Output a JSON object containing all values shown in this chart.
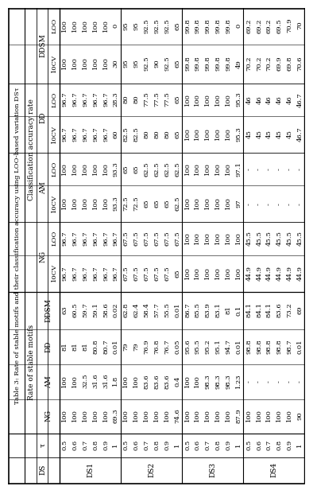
{
  "title": "Table 3: Rate of stable motifs and their classification accuracy using LOO-based variation DSτ",
  "ds_groups": [
    "DS1",
    "DS2",
    "DS3",
    "DS4"
  ],
  "tau_values": [
    "0.5",
    "0.6",
    "0.7",
    "0.8",
    "0.9",
    "1"
  ],
  "data": {
    "DS1": {
      "NG": [
        100,
        100,
        100,
        100,
        100,
        69.3
      ],
      "AM": [
        100,
        100,
        32.5,
        31.6,
        31.6,
        1.8
      ],
      "DD": [
        81,
        81,
        81,
        80.8,
        80.7,
        0.01
      ],
      "DDSM": [
        63,
        60.5,
        59.7,
        59.1,
        58.6,
        0.02
      ],
      "NG_10CV": [
        96.7,
        96.7,
        96.7,
        96.7,
        96.7,
        96.7
      ],
      "NG_LOO": [
        96.7,
        96.7,
        96.7,
        96.7,
        96.7,
        96.7
      ],
      "AM_10CV": [
        100,
        100,
        100,
        100,
        100,
        93.3
      ],
      "AM_LOO": [
        100,
        100,
        100,
        100,
        100,
        93.3
      ],
      "DD_10CV": [
        96.7,
        96.7,
        96.7,
        96.7,
        96.7,
        60
      ],
      "DD_LOO": [
        96.7,
        96.7,
        96.7,
        96.7,
        96.7,
        28.3
      ],
      "DDSM_10CV": [
        100,
        100,
        100,
        100,
        100,
        30
      ],
      "DDSM_LOO": [
        100,
        100,
        100,
        100,
        100,
        0
      ]
    },
    "DS2": {
      "NG": [
        100,
        100,
        100,
        100,
        100,
        74.6
      ],
      "AM": [
        100,
        100,
        83.6,
        83.6,
        83.6,
        0.4
      ],
      "DD": [
        79,
        79,
        76.9,
        76.8,
        76.7,
        0.05
      ],
      "DDSM": [
        62.8,
        62.4,
        58.4,
        57.7,
        55.5,
        0.01
      ],
      "NG_10CV": [
        67.5,
        67.5,
        67.5,
        67.5,
        67.5,
        65
      ],
      "NG_LOO": [
        67.5,
        67.5,
        67.5,
        67.5,
        67.5,
        67.5
      ],
      "AM_10CV": [
        72.5,
        72.5,
        65,
        65,
        65,
        62.5
      ],
      "AM_LOO": [
        65,
        65,
        62.5,
        62.5,
        62.5,
        62.5
      ],
      "DD_10CV": [
        82.5,
        82.5,
        80,
        80,
        80,
        65
      ],
      "DD_LOO": [
        80,
        80,
        77.5,
        77.5,
        77.5,
        65
      ],
      "DDSM_10CV": [
        95,
        95,
        92.5,
        90,
        92.5,
        65
      ],
      "DDSM_LOO": [
        95,
        95,
        92.5,
        92.5,
        92.5,
        65
      ]
    },
    "DS3": {
      "NG": [
        100,
        100,
        100,
        100,
        100,
        87.9
      ],
      "AM": [
        100,
        100,
        98.3,
        98.3,
        98.3,
        1.23
      ],
      "DD": [
        95.6,
        95.5,
        95.2,
        95.1,
        94.7,
        0.01
      ],
      "DDSM": [
        86.7,
        85.5,
        83.9,
        83.1,
        81,
        0.1
      ],
      "NG_10CV": [
        100,
        100,
        100,
        100,
        100,
        100
      ],
      "NG_LOO": [
        100,
        100,
        100,
        100,
        100,
        100
      ],
      "AM_10CV": [
        100,
        100,
        100,
        100,
        100,
        97
      ],
      "AM_LOO": [
        100,
        100,
        100,
        100,
        100,
        97.1
      ],
      "DD_10CV": [
        100,
        100,
        100,
        100,
        100,
        95.3
      ],
      "DD_LOO": [
        100,
        100,
        100,
        100,
        100,
        95.3
      ],
      "DDSM_10CV": [
        99.8,
        99.8,
        99.8,
        99.8,
        99.8,
        49
      ],
      "DDSM_LOO": [
        99.8,
        99.8,
        99.8,
        99.8,
        99.8,
        0
      ]
    },
    "DS4": {
      "NG": [
        100,
        100,
        100,
        100,
        100,
        90
      ],
      "AM": [
        "-",
        "-",
        "-",
        "-",
        "-",
        "-"
      ],
      "DD": [
        98.8,
        98.8,
        98.8,
        98.8,
        98.7,
        0.01
      ],
      "DDSM": [
        84.1,
        84.1,
        84.1,
        83.6,
        73.2,
        69
      ],
      "NG_10CV": [
        44.9,
        44.9,
        44.9,
        44.9,
        44.9,
        44.9
      ],
      "NG_LOO": [
        45.5,
        45.5,
        45.5,
        45.5,
        45.5,
        45.5
      ],
      "AM_10CV": [
        "-",
        "-",
        "-",
        "-",
        "-",
        "-"
      ],
      "AM_LOO": [
        "-",
        "-",
        "-",
        "-",
        "-",
        "-"
      ],
      "DD_10CV": [
        45,
        45,
        45,
        45,
        45,
        46.7
      ],
      "DD_LOO": [
        46,
        46,
        46,
        46,
        46,
        46.7
      ],
      "DDSM_10CV": [
        70.2,
        70.2,
        70.2,
        69.9,
        69.8,
        70.6
      ],
      "DDSM_LOO": [
        69.2,
        69.2,
        69.2,
        69.5,
        70.9,
        70
      ]
    }
  },
  "font_size": 6.0,
  "header_font_size": 6.5,
  "title_font_size": 6.0,
  "bg_color": "white"
}
